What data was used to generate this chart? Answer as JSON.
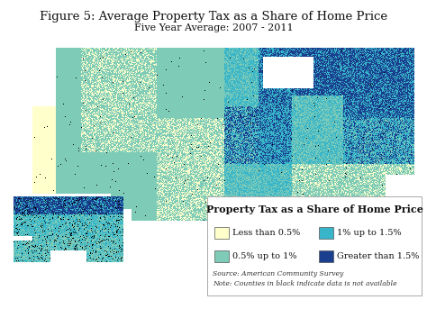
{
  "title_line1": "Figure 5: Average Property Tax as a Share of Home Price",
  "title_line2": "Five Year Average: 2007 - 2011",
  "legend_title": "Property Tax as a Share of Home Price",
  "legend_items": [
    {
      "label": "Less than 0.5%",
      "color": "#ffffcc"
    },
    {
      "label": "0.5% up to 1%",
      "color": "#7ecbb8"
    },
    {
      "label": "1% up to 1.5%",
      "color": "#38b5c8"
    },
    {
      "label": "Greater than 1.5%",
      "color": "#1a3f8f"
    }
  ],
  "source_text": "Source: American Community Survey",
  "note_text": "Note: Counties in black indicate data is not available",
  "bg_color": "#ffffff",
  "ocean_color": "#ffffff",
  "title_fontsize": 9.5,
  "subtitle_fontsize": 8.0,
  "legend_title_fontsize": 8.5,
  "legend_item_fontsize": 7.5,
  "source_fontsize": 6.0,
  "color_lightyellow": [
    255,
    255,
    204
  ],
  "color_lightgreen": [
    126,
    203,
    184
  ],
  "color_teal": [
    56,
    181,
    200
  ],
  "color_darkblue": [
    26,
    63,
    143
  ],
  "color_black": [
    0,
    0,
    0
  ],
  "color_white": [
    255,
    255,
    255
  ]
}
